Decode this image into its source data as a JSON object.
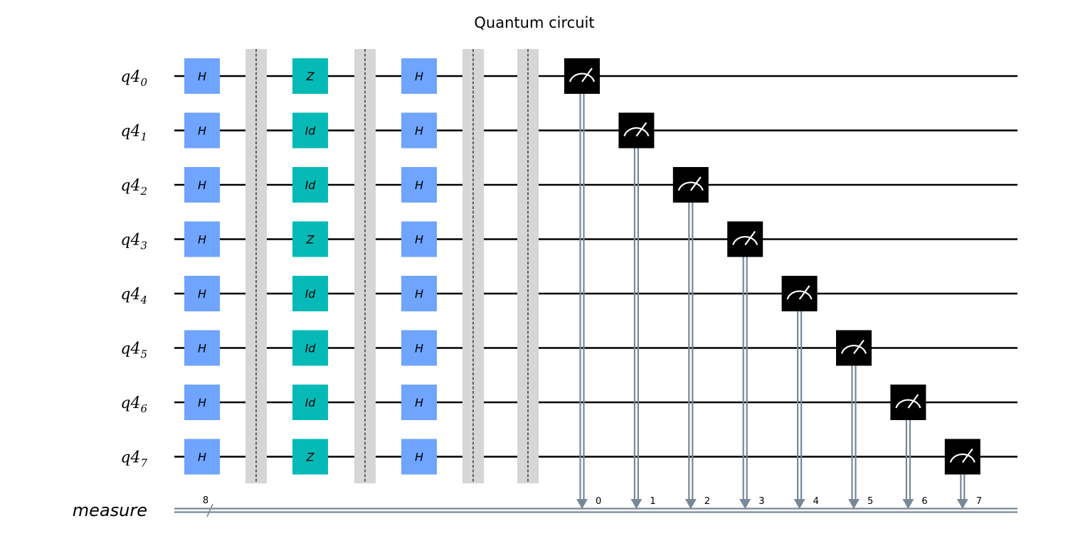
{
  "title": "Quantum circuit",
  "qubits": [
    {
      "base": "q4",
      "index": "0"
    },
    {
      "base": "q4",
      "index": "1"
    },
    {
      "base": "q4",
      "index": "2"
    },
    {
      "base": "q4",
      "index": "3"
    },
    {
      "base": "q4",
      "index": "4"
    },
    {
      "base": "q4",
      "index": "5"
    },
    {
      "base": "q4",
      "index": "6"
    },
    {
      "base": "q4",
      "index": "7"
    }
  ],
  "classical_register": {
    "label": "measure",
    "width_label": "8"
  },
  "layers": [
    {
      "type": "gates",
      "gates": [
        "H",
        "H",
        "H",
        "H",
        "H",
        "H",
        "H",
        "H"
      ]
    },
    {
      "type": "barrier"
    },
    {
      "type": "gates",
      "gates": [
        "Z",
        "Id",
        "Id",
        "Z",
        "Id",
        "Id",
        "Id",
        "Z"
      ]
    },
    {
      "type": "barrier"
    },
    {
      "type": "gates",
      "gates": [
        "H",
        "H",
        "H",
        "H",
        "H",
        "H",
        "H",
        "H"
      ]
    },
    {
      "type": "barrier"
    },
    {
      "type": "barrier"
    }
  ],
  "measurements": [
    {
      "qubit": 0,
      "bit": "0"
    },
    {
      "qubit": 1,
      "bit": "1"
    },
    {
      "qubit": 2,
      "bit": "2"
    },
    {
      "qubit": 3,
      "bit": "3"
    },
    {
      "qubit": 4,
      "bit": "4"
    },
    {
      "qubit": 5,
      "bit": "5"
    },
    {
      "qubit": 6,
      "bit": "6"
    },
    {
      "qubit": 7,
      "bit": "7"
    }
  ],
  "colors": {
    "H": "#6fa4ff",
    "Z": "#05bab6",
    "Id": "#05bab6",
    "measure_box": "#000000",
    "classical_wire": "#778899",
    "barrier": "#d6d6d6",
    "wire": "#000000"
  }
}
